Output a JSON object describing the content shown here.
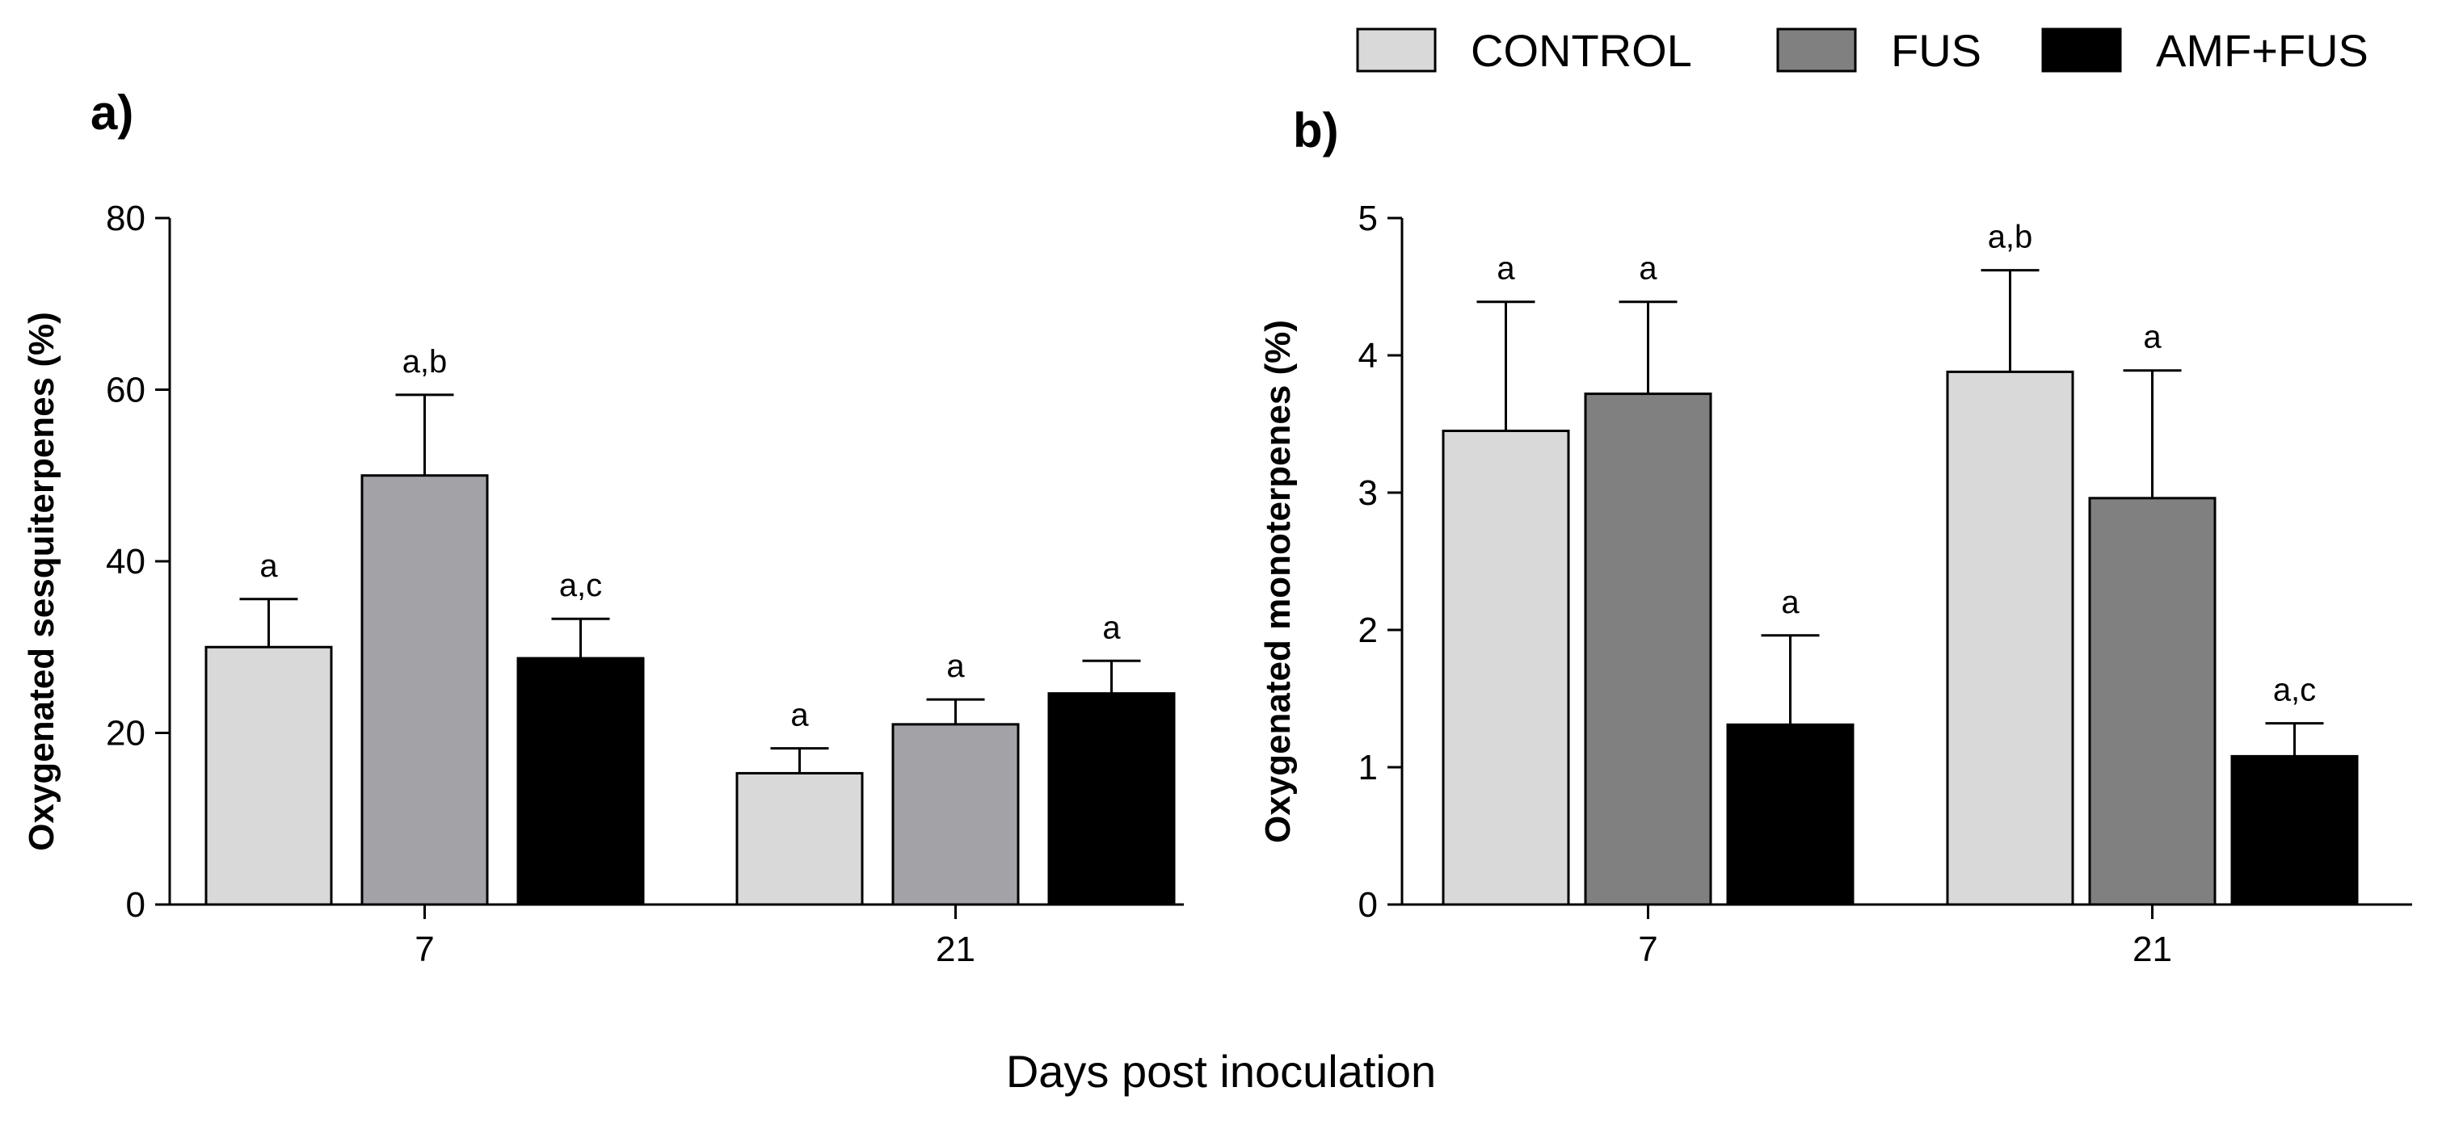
{
  "legend": [
    {
      "label": "CONTROL",
      "color": "#d9d9d9"
    },
    {
      "label": "FUS",
      "color": "#808080"
    },
    {
      "label": "AMF+FUS",
      "color": "#000000"
    }
  ],
  "xlabel": "Days post inoculation",
  "chart_data": [
    {
      "type": "bar",
      "panel": "a)",
      "ylabel": "Oxygenated sesquiterpenes (%)",
      "ylim": [
        0,
        80
      ],
      "yticks": [
        0,
        20,
        40,
        60,
        80
      ],
      "categories": [
        "7",
        "21"
      ],
      "series": [
        {
          "name": "CONTROL",
          "color": "#d9d9d9",
          "values": [
            30,
            15.3
          ],
          "errors": [
            5.6,
            2.9
          ],
          "labels": [
            "a",
            "a"
          ]
        },
        {
          "name": "FUS",
          "color": "#a3a2a7",
          "values": [
            50,
            21
          ],
          "errors": [
            9.4,
            2.9
          ],
          "labels": [
            "a,b",
            "a"
          ]
        },
        {
          "name": "AMF+FUS",
          "color": "#000000",
          "values": [
            28.7,
            24.6
          ],
          "errors": [
            4.6,
            3.8
          ],
          "labels": [
            "a,c",
            "a"
          ]
        }
      ]
    },
    {
      "type": "bar",
      "panel": "b)",
      "ylabel": "Oxygenated monoterpenes (%)",
      "ylim": [
        0,
        5
      ],
      "yticks": [
        0,
        1,
        2,
        3,
        4,
        5
      ],
      "categories": [
        "7",
        "21"
      ],
      "series": [
        {
          "name": "CONTROL",
          "color": "#d9d9d9",
          "values": [
            3.45,
            3.88
          ],
          "errors": [
            0.94,
            0.74
          ],
          "labels": [
            "a",
            "a,b"
          ]
        },
        {
          "name": "FUS",
          "color": "#808080",
          "values": [
            3.72,
            2.96
          ],
          "errors": [
            0.67,
            0.93
          ],
          "labels": [
            "a",
            "a"
          ]
        },
        {
          "name": "AMF+FUS",
          "color": "#000000",
          "values": [
            1.31,
            1.08
          ],
          "errors": [
            0.65,
            0.24
          ],
          "labels": [
            "a",
            "a,c"
          ]
        }
      ]
    }
  ]
}
